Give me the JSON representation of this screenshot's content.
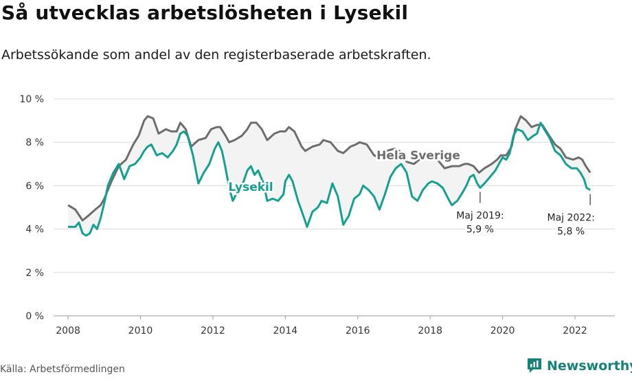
{
  "title": "Så utvecklas arbetslösheten i Lysekil",
  "subtitle": "Arbetssökande som andel av den registerbaserade arbetskraften.",
  "source": "Källa: Arbetsförmedlingen",
  "brand": "Newsworthy",
  "colors": {
    "lysekil": "#14a090",
    "sverige": "#6d6d6d",
    "fill": "#f3f3f3",
    "grid": "#d9d9d9",
    "brand": "#15827a"
  },
  "chart_data": {
    "type": "line",
    "xlabel": "",
    "ylabel": "",
    "ylim": [
      0,
      10
    ],
    "xlim": [
      2007.6,
      2023.1
    ],
    "yticks": [
      0,
      2,
      4,
      6,
      8,
      10
    ],
    "ytick_labels": [
      "0 %",
      "2 %",
      "4 %",
      "6 %",
      "8 %",
      "10 %"
    ],
    "xticks": [
      2008,
      2010,
      2012,
      2014,
      2016,
      2018,
      2020,
      2022
    ],
    "xtick_labels": [
      "2008",
      "2010",
      "2012",
      "2014",
      "2016",
      "2018",
      "2020",
      "2022"
    ],
    "series": [
      {
        "name": "Hela Sverige",
        "points": [
          [
            2008.0,
            5.1
          ],
          [
            2008.2,
            4.9
          ],
          [
            2008.4,
            4.4
          ],
          [
            2008.55,
            4.6
          ],
          [
            2008.75,
            4.9
          ],
          [
            2008.9,
            5.1
          ],
          [
            2009.0,
            5.4
          ],
          [
            2009.2,
            6.2
          ],
          [
            2009.4,
            6.9
          ],
          [
            2009.6,
            7.2
          ],
          [
            2009.8,
            7.9
          ],
          [
            2009.95,
            8.3
          ],
          [
            2010.1,
            9.0
          ],
          [
            2010.2,
            9.2
          ],
          [
            2010.35,
            9.1
          ],
          [
            2010.5,
            8.4
          ],
          [
            2010.7,
            8.6
          ],
          [
            2010.85,
            8.5
          ],
          [
            2011.0,
            8.5
          ],
          [
            2011.1,
            8.9
          ],
          [
            2011.25,
            8.6
          ],
          [
            2011.4,
            7.8
          ],
          [
            2011.6,
            8.1
          ],
          [
            2011.8,
            8.2
          ],
          [
            2011.95,
            8.6
          ],
          [
            2012.1,
            8.7
          ],
          [
            2012.2,
            8.7
          ],
          [
            2012.35,
            8.3
          ],
          [
            2012.45,
            8.0
          ],
          [
            2012.6,
            8.1
          ],
          [
            2012.8,
            8.3
          ],
          [
            2012.95,
            8.6
          ],
          [
            2013.05,
            8.9
          ],
          [
            2013.2,
            8.9
          ],
          [
            2013.35,
            8.6
          ],
          [
            2013.5,
            8.1
          ],
          [
            2013.7,
            8.4
          ],
          [
            2013.85,
            8.5
          ],
          [
            2014.0,
            8.5
          ],
          [
            2014.1,
            8.7
          ],
          [
            2014.25,
            8.5
          ],
          [
            2014.45,
            7.8
          ],
          [
            2014.55,
            7.6
          ],
          [
            2014.75,
            7.8
          ],
          [
            2014.95,
            7.9
          ],
          [
            2015.05,
            8.1
          ],
          [
            2015.25,
            8.0
          ],
          [
            2015.45,
            7.6
          ],
          [
            2015.6,
            7.5
          ],
          [
            2015.8,
            7.8
          ],
          [
            2015.95,
            7.9
          ],
          [
            2016.05,
            8.0
          ],
          [
            2016.25,
            7.9
          ],
          [
            2016.45,
            7.4
          ],
          [
            2016.6,
            7.3
          ],
          [
            2016.8,
            7.6
          ],
          [
            2017.0,
            7.7
          ],
          [
            2017.15,
            7.6
          ],
          [
            2017.35,
            7.1
          ],
          [
            2017.55,
            7.0
          ],
          [
            2017.7,
            7.2
          ],
          [
            2017.9,
            7.3
          ],
          [
            2018.05,
            7.3
          ],
          [
            2018.2,
            7.2
          ],
          [
            2018.4,
            6.8
          ],
          [
            2018.6,
            6.9
          ],
          [
            2018.8,
            6.9
          ],
          [
            2018.95,
            7.0
          ],
          [
            2019.05,
            7.0
          ],
          [
            2019.2,
            6.9
          ],
          [
            2019.35,
            6.6
          ],
          [
            2019.5,
            6.8
          ],
          [
            2019.7,
            7.0
          ],
          [
            2019.85,
            7.2
          ],
          [
            2019.95,
            7.4
          ],
          [
            2020.1,
            7.4
          ],
          [
            2020.25,
            7.8
          ],
          [
            2020.35,
            8.6
          ],
          [
            2020.5,
            9.2
          ],
          [
            2020.65,
            9.0
          ],
          [
            2020.8,
            8.7
          ],
          [
            2020.95,
            8.8
          ],
          [
            2021.1,
            8.8
          ],
          [
            2021.25,
            8.4
          ],
          [
            2021.45,
            7.9
          ],
          [
            2021.6,
            7.7
          ],
          [
            2021.75,
            7.3
          ],
          [
            2021.95,
            7.2
          ],
          [
            2022.1,
            7.3
          ],
          [
            2022.2,
            7.2
          ],
          [
            2022.3,
            6.9
          ],
          [
            2022.42,
            6.6
          ]
        ]
      },
      {
        "name": "Lysekil",
        "points": [
          [
            2008.0,
            4.1
          ],
          [
            2008.2,
            4.1
          ],
          [
            2008.3,
            4.3
          ],
          [
            2008.4,
            3.8
          ],
          [
            2008.5,
            3.7
          ],
          [
            2008.6,
            3.8
          ],
          [
            2008.7,
            4.2
          ],
          [
            2008.8,
            4.0
          ],
          [
            2008.9,
            4.5
          ],
          [
            2009.0,
            5.2
          ],
          [
            2009.1,
            6.0
          ],
          [
            2009.25,
            6.6
          ],
          [
            2009.4,
            7.0
          ],
          [
            2009.55,
            6.3
          ],
          [
            2009.7,
            6.9
          ],
          [
            2009.85,
            7.0
          ],
          [
            2010.0,
            7.3
          ],
          [
            2010.1,
            7.6
          ],
          [
            2010.2,
            7.8
          ],
          [
            2010.3,
            7.9
          ],
          [
            2010.45,
            7.4
          ],
          [
            2010.6,
            7.5
          ],
          [
            2010.75,
            7.3
          ],
          [
            2010.9,
            7.6
          ],
          [
            2011.0,
            7.9
          ],
          [
            2011.1,
            8.4
          ],
          [
            2011.2,
            8.5
          ],
          [
            2011.3,
            8.3
          ],
          [
            2011.45,
            7.4
          ],
          [
            2011.6,
            6.1
          ],
          [
            2011.75,
            6.6
          ],
          [
            2011.9,
            7.0
          ],
          [
            2012.05,
            7.7
          ],
          [
            2012.15,
            8.0
          ],
          [
            2012.25,
            7.6
          ],
          [
            2012.35,
            6.8
          ],
          [
            2012.45,
            5.9
          ],
          [
            2012.55,
            5.3
          ],
          [
            2012.7,
            5.8
          ],
          [
            2012.85,
            6.2
          ],
          [
            2012.95,
            6.7
          ],
          [
            2013.05,
            6.9
          ],
          [
            2013.15,
            6.5
          ],
          [
            2013.25,
            6.7
          ],
          [
            2013.4,
            6.1
          ],
          [
            2013.5,
            5.3
          ],
          [
            2013.65,
            5.4
          ],
          [
            2013.8,
            5.3
          ],
          [
            2013.95,
            5.6
          ],
          [
            2014.0,
            6.2
          ],
          [
            2014.1,
            6.5
          ],
          [
            2014.2,
            6.2
          ],
          [
            2014.35,
            5.3
          ],
          [
            2014.5,
            4.6
          ],
          [
            2014.6,
            4.1
          ],
          [
            2014.75,
            4.8
          ],
          [
            2014.9,
            5.0
          ],
          [
            2015.0,
            5.3
          ],
          [
            2015.15,
            5.2
          ],
          [
            2015.3,
            6.1
          ],
          [
            2015.45,
            5.5
          ],
          [
            2015.6,
            4.2
          ],
          [
            2015.75,
            4.6
          ],
          [
            2015.9,
            5.4
          ],
          [
            2016.05,
            5.6
          ],
          [
            2016.15,
            6.0
          ],
          [
            2016.3,
            5.8
          ],
          [
            2016.45,
            5.5
          ],
          [
            2016.6,
            4.9
          ],
          [
            2016.75,
            5.6
          ],
          [
            2016.9,
            6.4
          ],
          [
            2017.05,
            6.8
          ],
          [
            2017.2,
            7.0
          ],
          [
            2017.35,
            6.6
          ],
          [
            2017.5,
            5.5
          ],
          [
            2017.65,
            5.3
          ],
          [
            2017.8,
            5.8
          ],
          [
            2017.95,
            6.1
          ],
          [
            2018.05,
            6.2
          ],
          [
            2018.2,
            6.1
          ],
          [
            2018.35,
            5.9
          ],
          [
            2018.5,
            5.4
          ],
          [
            2018.6,
            5.1
          ],
          [
            2018.75,
            5.3
          ],
          [
            2018.9,
            5.7
          ],
          [
            2019.0,
            6.0
          ],
          [
            2019.1,
            6.4
          ],
          [
            2019.2,
            6.5
          ],
          [
            2019.3,
            6.1
          ],
          [
            2019.38,
            5.9
          ],
          [
            2019.5,
            6.1
          ],
          [
            2019.65,
            6.4
          ],
          [
            2019.8,
            6.7
          ],
          [
            2019.9,
            7.0
          ],
          [
            2020.0,
            7.3
          ],
          [
            2020.1,
            7.2
          ],
          [
            2020.2,
            7.5
          ],
          [
            2020.3,
            8.3
          ],
          [
            2020.4,
            8.6
          ],
          [
            2020.55,
            8.5
          ],
          [
            2020.7,
            8.1
          ],
          [
            2020.85,
            8.3
          ],
          [
            2020.95,
            8.4
          ],
          [
            2021.05,
            8.9
          ],
          [
            2021.15,
            8.6
          ],
          [
            2021.3,
            8.2
          ],
          [
            2021.45,
            7.6
          ],
          [
            2021.6,
            7.4
          ],
          [
            2021.75,
            7.0
          ],
          [
            2021.9,
            6.8
          ],
          [
            2022.05,
            6.8
          ],
          [
            2022.15,
            6.6
          ],
          [
            2022.25,
            6.3
          ],
          [
            2022.32,
            5.9
          ],
          [
            2022.42,
            5.8
          ]
        ]
      }
    ],
    "annotations": [
      {
        "x": 2019.38,
        "y": 5.9,
        "lines": [
          "Maj 2019:",
          "5,9 %"
        ],
        "series": "Lysekil"
      },
      {
        "x": 2022.42,
        "y": 5.8,
        "lines": [
          "Maj 2022:",
          "5,8 %"
        ],
        "series": "Lysekil"
      }
    ]
  }
}
